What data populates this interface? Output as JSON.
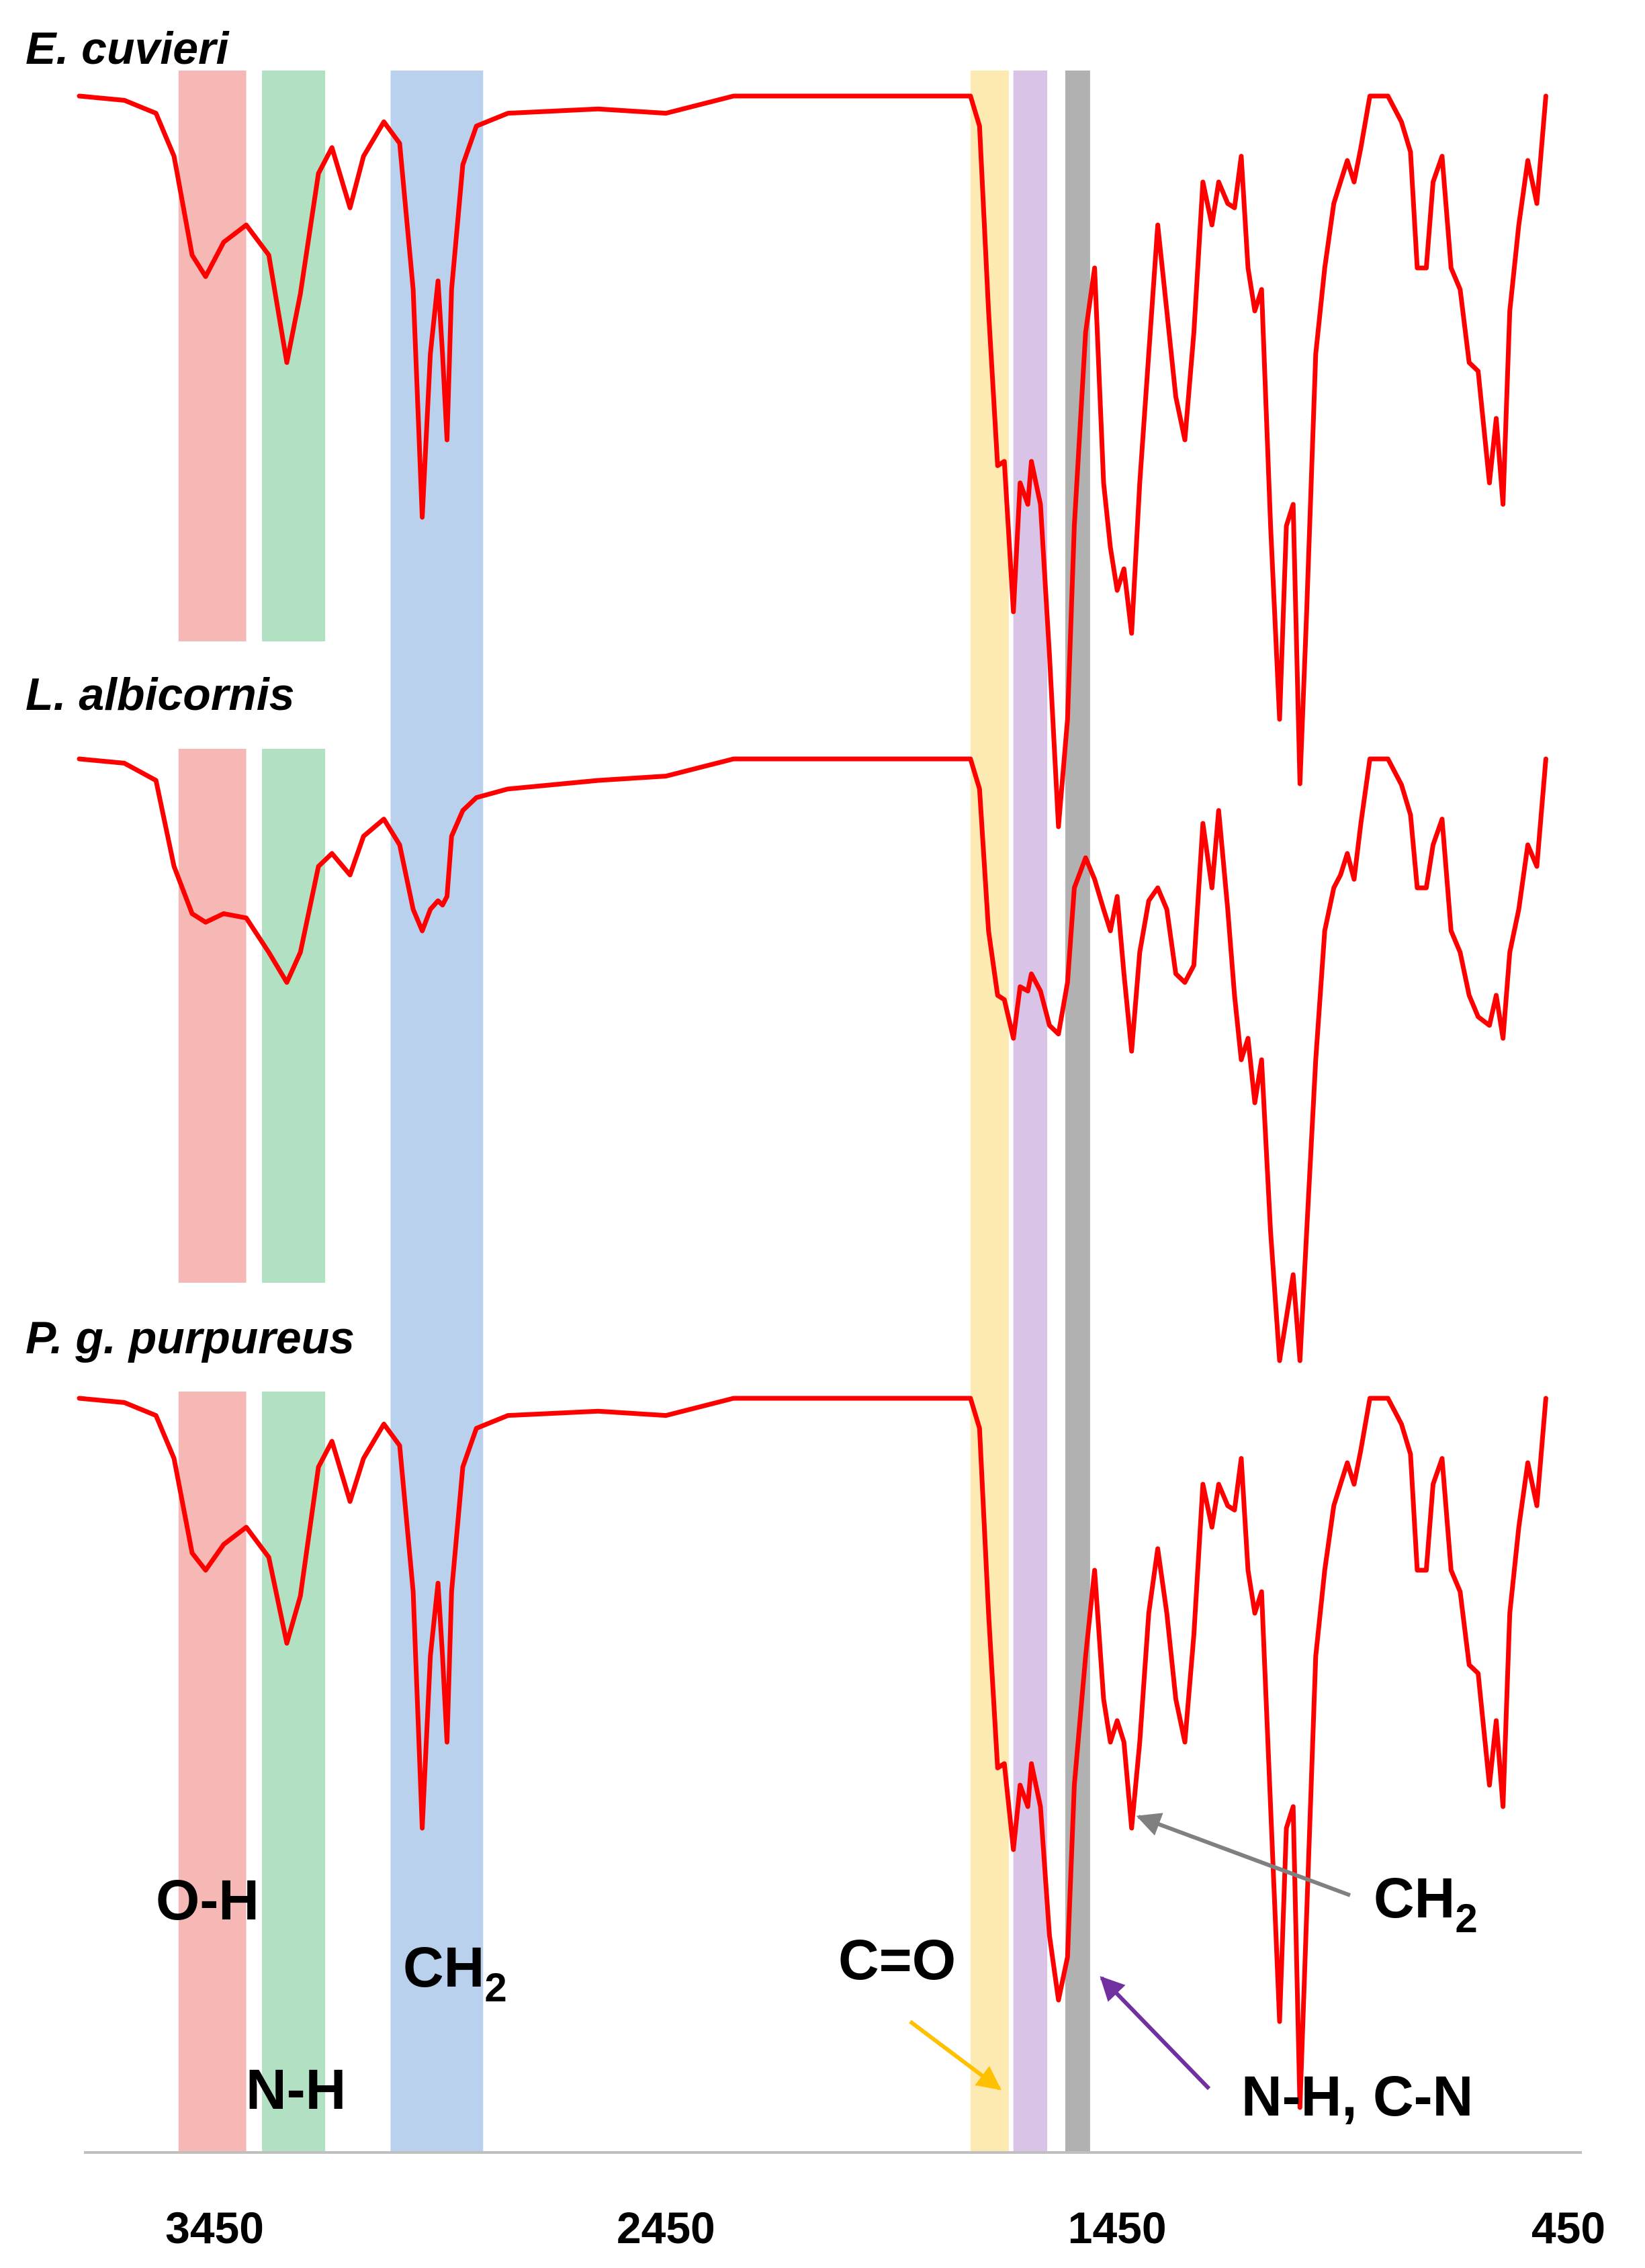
{
  "chart_data": {
    "type": "line",
    "xlabel": "",
    "ylabel": "",
    "xlim": [
      3750,
      450
    ],
    "x_reversed": true,
    "grid": false,
    "x_ticks": [
      "3450",
      "2450",
      "1450",
      "450"
    ],
    "line_color": "#ff0000",
    "series": [
      {
        "name": "E. cuvieri",
        "points": [
          [
            3750,
            0.0
          ],
          [
            3650,
            0.01
          ],
          [
            3580,
            0.04
          ],
          [
            3540,
            0.14
          ],
          [
            3500,
            0.37
          ],
          [
            3470,
            0.42
          ],
          [
            3430,
            0.34
          ],
          [
            3380,
            0.3
          ],
          [
            3330,
            0.37
          ],
          [
            3290,
            0.62
          ],
          [
            3260,
            0.46
          ],
          [
            3220,
            0.18
          ],
          [
            3190,
            0.12
          ],
          [
            3150,
            0.26
          ],
          [
            3120,
            0.14
          ],
          [
            3075,
            0.06
          ],
          [
            3040,
            0.11
          ],
          [
            3010,
            0.45
          ],
          [
            2990,
            0.98
          ],
          [
            2972,
            0.6
          ],
          [
            2955,
            0.43
          ],
          [
            2945,
            0.6
          ],
          [
            2935,
            0.8
          ],
          [
            2925,
            0.45
          ],
          [
            2900,
            0.16
          ],
          [
            2870,
            0.07
          ],
          [
            2800,
            0.04
          ],
          [
            2600,
            0.03
          ],
          [
            2450,
            0.04
          ],
          [
            2300,
            0.0
          ],
          [
            2100,
            0.0
          ],
          [
            1900,
            0.0
          ],
          [
            1775,
            0.0
          ],
          [
            1755,
            0.07
          ],
          [
            1735,
            0.5
          ],
          [
            1715,
            0.86
          ],
          [
            1700,
            0.85
          ],
          [
            1680,
            1.2
          ],
          [
            1665,
            0.9
          ],
          [
            1648,
            0.95
          ],
          [
            1640,
            0.85
          ],
          [
            1620,
            0.95
          ],
          [
            1600,
            1.3
          ],
          [
            1580,
            1.7
          ],
          [
            1560,
            1.45
          ],
          [
            1545,
            1.0
          ],
          [
            1520,
            0.55
          ],
          [
            1500,
            0.4
          ],
          [
            1480,
            0.9
          ],
          [
            1465,
            1.05
          ],
          [
            1450,
            1.15
          ],
          [
            1435,
            1.1
          ],
          [
            1418,
            1.25
          ],
          [
            1400,
            0.9
          ],
          [
            1380,
            0.6
          ],
          [
            1360,
            0.3
          ],
          [
            1340,
            0.5
          ],
          [
            1320,
            0.7
          ],
          [
            1300,
            0.8
          ],
          [
            1280,
            0.55
          ],
          [
            1260,
            0.2
          ],
          [
            1240,
            0.3
          ],
          [
            1225,
            0.2
          ],
          [
            1205,
            0.25
          ],
          [
            1190,
            0.26
          ],
          [
            1175,
            0.14
          ],
          [
            1160,
            0.4
          ],
          [
            1145,
            0.5
          ],
          [
            1130,
            0.45
          ],
          [
            1110,
            1.0
          ],
          [
            1090,
            1.45
          ],
          [
            1075,
            1.0
          ],
          [
            1060,
            0.95
          ],
          [
            1045,
            1.6
          ],
          [
            1030,
            1.2
          ],
          [
            1010,
            0.6
          ],
          [
            990,
            0.4
          ],
          [
            970,
            0.25
          ],
          [
            955,
            0.2
          ],
          [
            940,
            0.15
          ],
          [
            925,
            0.2
          ],
          [
            910,
            0.12
          ],
          [
            890,
            0.0
          ],
          [
            850,
            0.0
          ],
          [
            820,
            0.06
          ],
          [
            800,
            0.13
          ],
          [
            785,
            0.4
          ],
          [
            765,
            0.4
          ],
          [
            750,
            0.2
          ],
          [
            730,
            0.14
          ],
          [
            710,
            0.4
          ],
          [
            690,
            0.45
          ],
          [
            670,
            0.62
          ],
          [
            650,
            0.64
          ],
          [
            625,
            0.9
          ],
          [
            610,
            0.75
          ],
          [
            595,
            0.95
          ],
          [
            580,
            0.5
          ],
          [
            560,
            0.3
          ],
          [
            540,
            0.15
          ],
          [
            520,
            0.25
          ],
          [
            500,
            0.0
          ]
        ]
      },
      {
        "name": "L. albicornis",
        "points": [
          [
            3750,
            0.0
          ],
          [
            3650,
            0.01
          ],
          [
            3580,
            0.05
          ],
          [
            3540,
            0.25
          ],
          [
            3500,
            0.36
          ],
          [
            3470,
            0.38
          ],
          [
            3430,
            0.36
          ],
          [
            3380,
            0.37
          ],
          [
            3330,
            0.45
          ],
          [
            3290,
            0.52
          ],
          [
            3260,
            0.45
          ],
          [
            3220,
            0.25
          ],
          [
            3190,
            0.22
          ],
          [
            3150,
            0.27
          ],
          [
            3120,
            0.18
          ],
          [
            3075,
            0.14
          ],
          [
            3040,
            0.2
          ],
          [
            3010,
            0.35
          ],
          [
            2990,
            0.4
          ],
          [
            2972,
            0.35
          ],
          [
            2955,
            0.33
          ],
          [
            2945,
            0.34
          ],
          [
            2935,
            0.32
          ],
          [
            2925,
            0.18
          ],
          [
            2900,
            0.12
          ],
          [
            2870,
            0.09
          ],
          [
            2800,
            0.07
          ],
          [
            2600,
            0.05
          ],
          [
            2450,
            0.04
          ],
          [
            2300,
            0.0
          ],
          [
            2100,
            0.0
          ],
          [
            1900,
            0.0
          ],
          [
            1775,
            0.0
          ],
          [
            1755,
            0.07
          ],
          [
            1735,
            0.4
          ],
          [
            1715,
            0.55
          ],
          [
            1700,
            0.56
          ],
          [
            1680,
            0.65
          ],
          [
            1665,
            0.53
          ],
          [
            1648,
            0.54
          ],
          [
            1640,
            0.5
          ],
          [
            1620,
            0.54
          ],
          [
            1600,
            0.62
          ],
          [
            1580,
            0.64
          ],
          [
            1560,
            0.52
          ],
          [
            1545,
            0.3
          ],
          [
            1520,
            0.23
          ],
          [
            1500,
            0.28
          ],
          [
            1480,
            0.35
          ],
          [
            1465,
            0.4
          ],
          [
            1450,
            0.32
          ],
          [
            1435,
            0.5
          ],
          [
            1418,
            0.68
          ],
          [
            1400,
            0.45
          ],
          [
            1380,
            0.33
          ],
          [
            1360,
            0.3
          ],
          [
            1340,
            0.35
          ],
          [
            1320,
            0.5
          ],
          [
            1300,
            0.52
          ],
          [
            1280,
            0.48
          ],
          [
            1260,
            0.15
          ],
          [
            1240,
            0.3
          ],
          [
            1225,
            0.12
          ],
          [
            1205,
            0.35
          ],
          [
            1190,
            0.55
          ],
          [
            1175,
            0.7
          ],
          [
            1160,
            0.65
          ],
          [
            1145,
            0.8
          ],
          [
            1130,
            0.7
          ],
          [
            1110,
            1.1
          ],
          [
            1090,
            1.4
          ],
          [
            1075,
            1.3
          ],
          [
            1060,
            1.2
          ],
          [
            1045,
            1.4
          ],
          [
            1030,
            1.1
          ],
          [
            1010,
            0.7
          ],
          [
            990,
            0.4
          ],
          [
            970,
            0.3
          ],
          [
            955,
            0.27
          ],
          [
            940,
            0.22
          ],
          [
            925,
            0.28
          ],
          [
            910,
            0.15
          ],
          [
            890,
            0.0
          ],
          [
            850,
            0.0
          ],
          [
            820,
            0.06
          ],
          [
            800,
            0.13
          ],
          [
            785,
            0.3
          ],
          [
            765,
            0.3
          ],
          [
            750,
            0.2
          ],
          [
            730,
            0.14
          ],
          [
            710,
            0.4
          ],
          [
            690,
            0.45
          ],
          [
            670,
            0.55
          ],
          [
            650,
            0.6
          ],
          [
            625,
            0.62
          ],
          [
            610,
            0.55
          ],
          [
            595,
            0.65
          ],
          [
            580,
            0.45
          ],
          [
            560,
            0.35
          ],
          [
            540,
            0.2
          ],
          [
            520,
            0.25
          ],
          [
            500,
            0.0
          ]
        ]
      },
      {
        "name": "P. g. purpureus",
        "points": [
          [
            3750,
            0.0
          ],
          [
            3650,
            0.01
          ],
          [
            3580,
            0.04
          ],
          [
            3540,
            0.14
          ],
          [
            3500,
            0.36
          ],
          [
            3470,
            0.4
          ],
          [
            3430,
            0.34
          ],
          [
            3380,
            0.3
          ],
          [
            3330,
            0.37
          ],
          [
            3290,
            0.57
          ],
          [
            3260,
            0.46
          ],
          [
            3220,
            0.16
          ],
          [
            3190,
            0.1
          ],
          [
            3150,
            0.24
          ],
          [
            3120,
            0.14
          ],
          [
            3075,
            0.06
          ],
          [
            3040,
            0.11
          ],
          [
            3010,
            0.45
          ],
          [
            2990,
            1.0
          ],
          [
            2972,
            0.6
          ],
          [
            2955,
            0.43
          ],
          [
            2945,
            0.6
          ],
          [
            2935,
            0.8
          ],
          [
            2925,
            0.45
          ],
          [
            2900,
            0.16
          ],
          [
            2870,
            0.07
          ],
          [
            2800,
            0.04
          ],
          [
            2600,
            0.03
          ],
          [
            2450,
            0.04
          ],
          [
            2300,
            0.0
          ],
          [
            2100,
            0.0
          ],
          [
            1900,
            0.0
          ],
          [
            1775,
            0.0
          ],
          [
            1755,
            0.07
          ],
          [
            1735,
            0.5
          ],
          [
            1715,
            0.86
          ],
          [
            1700,
            0.85
          ],
          [
            1680,
            1.05
          ],
          [
            1665,
            0.9
          ],
          [
            1648,
            0.95
          ],
          [
            1640,
            0.85
          ],
          [
            1620,
            0.95
          ],
          [
            1600,
            1.25
          ],
          [
            1580,
            1.4
          ],
          [
            1560,
            1.3
          ],
          [
            1545,
            0.9
          ],
          [
            1520,
            0.6
          ],
          [
            1500,
            0.4
          ],
          [
            1480,
            0.7
          ],
          [
            1465,
            0.8
          ],
          [
            1450,
            0.75
          ],
          [
            1435,
            0.8
          ],
          [
            1418,
            1.0
          ],
          [
            1400,
            0.8
          ],
          [
            1380,
            0.5
          ],
          [
            1360,
            0.35
          ],
          [
            1340,
            0.5
          ],
          [
            1320,
            0.7
          ],
          [
            1300,
            0.8
          ],
          [
            1280,
            0.55
          ],
          [
            1260,
            0.2
          ],
          [
            1240,
            0.3
          ],
          [
            1225,
            0.2
          ],
          [
            1205,
            0.25
          ],
          [
            1190,
            0.26
          ],
          [
            1175,
            0.14
          ],
          [
            1160,
            0.4
          ],
          [
            1145,
            0.5
          ],
          [
            1130,
            0.45
          ],
          [
            1110,
            0.95
          ],
          [
            1090,
            1.45
          ],
          [
            1075,
            1.0
          ],
          [
            1060,
            0.95
          ],
          [
            1045,
            1.65
          ],
          [
            1030,
            1.2
          ],
          [
            1010,
            0.6
          ],
          [
            990,
            0.4
          ],
          [
            970,
            0.25
          ],
          [
            955,
            0.2
          ],
          [
            940,
            0.15
          ],
          [
            925,
            0.2
          ],
          [
            910,
            0.12
          ],
          [
            890,
            0.0
          ],
          [
            850,
            0.0
          ],
          [
            820,
            0.06
          ],
          [
            800,
            0.13
          ],
          [
            785,
            0.4
          ],
          [
            765,
            0.4
          ],
          [
            750,
            0.2
          ],
          [
            730,
            0.14
          ],
          [
            710,
            0.4
          ],
          [
            690,
            0.45
          ],
          [
            670,
            0.62
          ],
          [
            650,
            0.64
          ],
          [
            625,
            0.9
          ],
          [
            610,
            0.75
          ],
          [
            595,
            0.95
          ],
          [
            580,
            0.5
          ],
          [
            560,
            0.3
          ],
          [
            540,
            0.15
          ],
          [
            520,
            0.25
          ],
          [
            500,
            0.0
          ]
        ]
      }
    ],
    "bands": [
      {
        "label": "O-H",
        "from": 3530,
        "to": 3380,
        "color": "#f4a6a3"
      },
      {
        "label": "N-H",
        "from": 3345,
        "to": 3205,
        "color": "#9fd8b3"
      },
      {
        "label": "CH2",
        "from": 3060,
        "to": 2855,
        "color": "#a9c6e8"
      },
      {
        "label": "C=O",
        "from": 1775,
        "to": 1690,
        "color": "#fde5a0"
      },
      {
        "label": "N-H, C-N",
        "from": 1680,
        "to": 1605,
        "color": "#cfb4e0"
      },
      {
        "label": "CH2",
        "from": 1565,
        "to": 1510,
        "color": "#9e9e9e"
      }
    ],
    "annotations": [
      {
        "text": "O-H",
        "sub": ""
      },
      {
        "text": "N-H",
        "sub": ""
      },
      {
        "text": "CH",
        "sub": "2"
      },
      {
        "text": "C=O",
        "sub": "",
        "arrow_color": "#ffc000"
      },
      {
        "text": "N-H, C-N",
        "sub": "",
        "arrow_color": "#7030a0"
      },
      {
        "text": "CH",
        "sub": "2",
        "arrow_color": "#808080"
      }
    ]
  }
}
